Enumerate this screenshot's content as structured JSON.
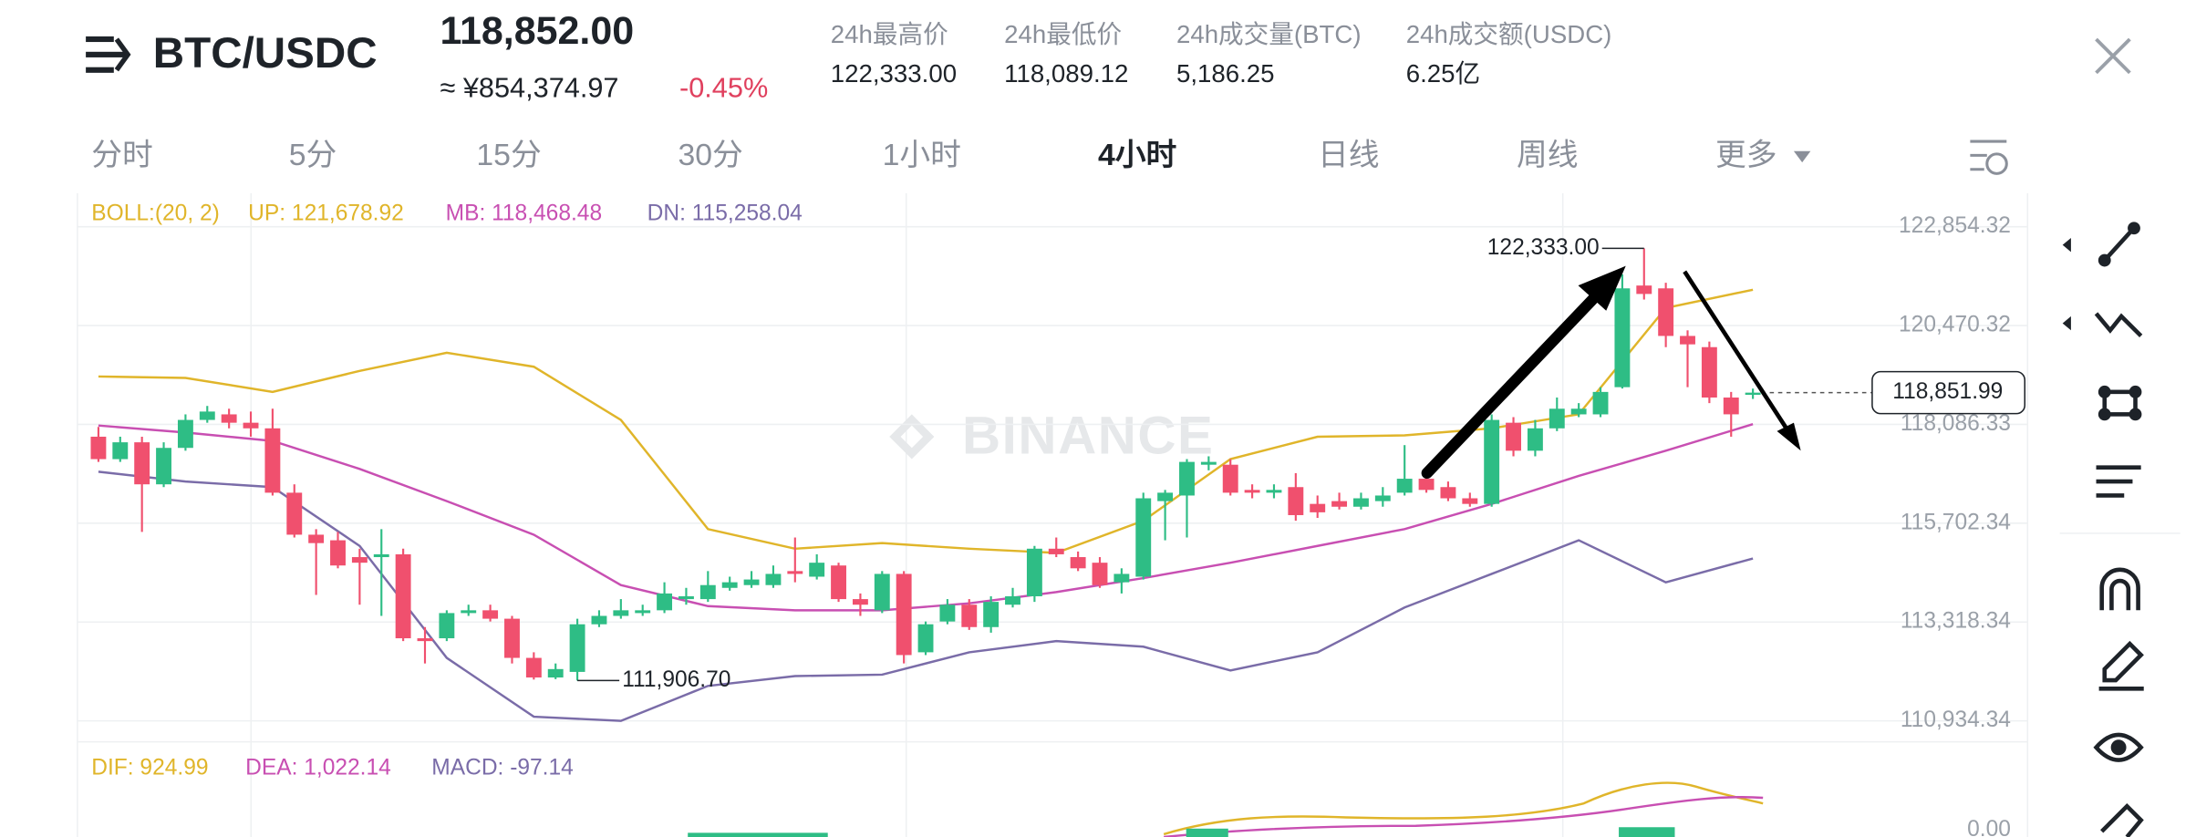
{
  "header": {
    "menu_pair": "BTC/USDC",
    "price": "118,852.00",
    "cny": "≈ ¥854,374.97",
    "change": "-0.45%",
    "stats": [
      {
        "label": "24h最高价",
        "value": "122,333.00"
      },
      {
        "label": "24h最低价",
        "value": "118,089.12"
      },
      {
        "label": "24h成交量(BTC)",
        "value": "5,186.25"
      },
      {
        "label": "24h成交额(USDC)",
        "value": "6.25亿"
      }
    ]
  },
  "tabs": [
    "分时",
    "5分",
    "15分",
    "30分",
    "1小时",
    "4小时",
    "日线",
    "周线",
    "更多"
  ],
  "active_tab": 5,
  "chart_data": {
    "type": "candlestick",
    "watermark": "BINANCE",
    "indicator": "BOLL:(20, 2)",
    "up_color": "#2ebd85",
    "down_color": "#f0506e",
    "ylim": [
      110427.8,
      123664.8
    ],
    "yticks": [
      {
        "value": 122854.32,
        "label": "122,854.32"
      },
      {
        "value": 120470.32,
        "label": "120,470.32"
      },
      {
        "value": 118086.33,
        "label": "118,086.33"
      },
      {
        "value": 115702.34,
        "label": "115,702.34"
      },
      {
        "value": 113318.34,
        "label": "113,318.34"
      },
      {
        "value": 110934.34,
        "label": "110,934.34"
      }
    ],
    "candles": [
      [
        117789,
        118025,
        117181,
        117248
      ],
      [
        117248,
        117789,
        117181,
        117654
      ],
      [
        117654,
        117789,
        115492,
        116640
      ],
      [
        116640,
        117654,
        116573,
        117519
      ],
      [
        117519,
        118328,
        117451,
        118194
      ],
      [
        118194,
        118531,
        118126,
        118396
      ],
      [
        118328,
        118464,
        117991,
        118126
      ],
      [
        118126,
        118396,
        117789,
        117991
      ],
      [
        117991,
        118464,
        116370,
        116438
      ],
      [
        116438,
        116640,
        115357,
        115425
      ],
      [
        115425,
        115559,
        113973,
        115222
      ],
      [
        115290,
        115492,
        114614,
        114682
      ],
      [
        114884,
        115087,
        113736,
        114749
      ],
      [
        114884,
        115559,
        113466,
        114952
      ],
      [
        114952,
        115087,
        112858,
        112926
      ],
      [
        112926,
        113196,
        112318,
        112858
      ],
      [
        112926,
        113601,
        112858,
        113534
      ],
      [
        113534,
        113736,
        113466,
        113601
      ],
      [
        113601,
        113736,
        113331,
        113398
      ],
      [
        113398,
        113466,
        112318,
        112453
      ],
      [
        112453,
        112588,
        111930,
        111980
      ],
      [
        111980,
        112318,
        111940,
        112183
      ],
      [
        112115,
        113398,
        111906.7,
        113264
      ],
      [
        113264,
        113601,
        113196,
        113466
      ],
      [
        113466,
        113871,
        113398,
        113601
      ],
      [
        113534,
        113736,
        113466,
        113601
      ],
      [
        113601,
        114277,
        113534,
        114007
      ],
      [
        113871,
        114142,
        113736,
        113939
      ],
      [
        113871,
        114547,
        113804,
        114209
      ],
      [
        114142,
        114412,
        114074,
        114277
      ],
      [
        114209,
        114547,
        114142,
        114344
      ],
      [
        114209,
        114682,
        114142,
        114479
      ],
      [
        114547,
        115357,
        114277,
        114479
      ],
      [
        114412,
        114952,
        114344,
        114749
      ],
      [
        114682,
        114749,
        113804,
        113871
      ],
      [
        113871,
        114007,
        113466,
        113736
      ],
      [
        113601,
        114547,
        113534,
        114479
      ],
      [
        114479,
        114547,
        112318,
        112521
      ],
      [
        112588,
        113331,
        112521,
        113264
      ],
      [
        113331,
        113871,
        113264,
        113736
      ],
      [
        113736,
        113871,
        113128,
        113196
      ],
      [
        113196,
        113939,
        113061,
        113804
      ],
      [
        113736,
        114142,
        113669,
        113939
      ],
      [
        113939,
        115154,
        113804,
        115087
      ],
      [
        115087,
        115357,
        114884,
        114952
      ],
      [
        114884,
        115019,
        114547,
        114614
      ],
      [
        114749,
        114884,
        114142,
        114209
      ],
      [
        114277,
        114614,
        114007,
        114479
      ],
      [
        114412,
        116438,
        114344,
        116303
      ],
      [
        116235,
        116505,
        115290,
        116438
      ],
      [
        116370,
        117248,
        115357,
        117181
      ],
      [
        117113,
        117316,
        116978,
        117181
      ],
      [
        117113,
        117248,
        116370,
        116438
      ],
      [
        116505,
        116640,
        116303,
        116438
      ],
      [
        116438,
        116640,
        116303,
        116505
      ],
      [
        116573,
        116910,
        115762,
        115897
      ],
      [
        116168,
        116370,
        115830,
        115965
      ],
      [
        116235,
        116438,
        116033,
        116100
      ],
      [
        116100,
        116438,
        116033,
        116303
      ],
      [
        116235,
        116573,
        116100,
        116370
      ],
      [
        116438,
        117586,
        116370,
        116775
      ],
      [
        116775,
        116910,
        116438,
        116505
      ],
      [
        116573,
        116708,
        116235,
        116303
      ],
      [
        116303,
        116438,
        116100,
        116168
      ],
      [
        116168,
        118328,
        116100,
        118194
      ],
      [
        118126,
        118261,
        117316,
        117451
      ],
      [
        117451,
        118194,
        117316,
        117991
      ],
      [
        117991,
        118734,
        117924,
        118464
      ],
      [
        118328,
        118599,
        118261,
        118464
      ],
      [
        118328,
        118984,
        118261,
        118869
      ],
      [
        118984,
        121706,
        118950,
        121368
      ],
      [
        121436,
        122333.0,
        121098,
        121233
      ],
      [
        121368,
        121503,
        119950,
        120220
      ],
      [
        120220,
        120355,
        118984,
        120017
      ],
      [
        119950,
        120085,
        118599,
        118734
      ],
      [
        118734,
        118869,
        117789,
        118329
      ],
      [
        118800,
        118950,
        118700,
        118851.99
      ]
    ],
    "band_index": [
      0,
      4,
      8,
      12,
      16,
      20,
      24,
      28,
      32,
      36,
      40,
      44,
      48,
      52,
      56,
      60,
      64,
      68,
      72,
      76
    ],
    "series": [
      {
        "name": "UP: 121,678.92",
        "color": "#e0b52a",
        "values": [
          119241,
          119207,
          118869,
          119376,
          119815,
          119477,
          118194,
          115560,
          115087,
          115222,
          115087,
          114986,
          115762,
          117248,
          117788,
          117822,
          117991,
          118329,
          120895,
          121334
        ]
      },
      {
        "name": "MB: 118,468.48",
        "color": "#c84fb2",
        "values": [
          118059,
          117890,
          117687,
          117012,
          116235,
          115425,
          114209,
          113702,
          113601,
          113601,
          113770,
          114040,
          114378,
          114749,
          115154,
          115560,
          116168,
          116843,
          117451,
          118092
        ]
      },
      {
        "name": "DN: 115,258.04",
        "color": "#7a6ca8",
        "values": [
          116944,
          116708,
          116573,
          115154,
          112453,
          111034,
          110933,
          111777,
          112014,
          112048,
          112588,
          112858,
          112723,
          112149,
          112588,
          113669,
          114479,
          115290,
          114276,
          114851
        ]
      }
    ],
    "high": {
      "candle": 71,
      "label": "122,333.00"
    },
    "low": {
      "candle": 22,
      "label": "111,906.70"
    },
    "last": {
      "candle": 76,
      "label": "118,851.99"
    },
    "macd": {
      "dif": "DIF: 924.99",
      "dea": "DEA: 1,022.14",
      "macd": "MACD: -97.14",
      "ytick": {
        "value": 0,
        "label": "0.00"
      }
    }
  }
}
